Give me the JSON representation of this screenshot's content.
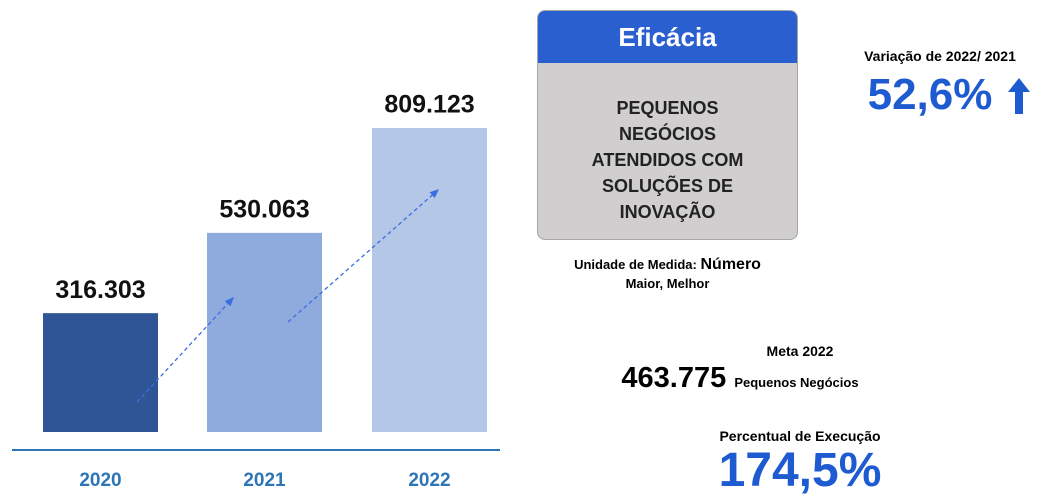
{
  "chart_data": {
    "type": "bar",
    "categories": [
      "2020",
      "2021",
      "2022"
    ],
    "values": [
      316303,
      530063,
      809123
    ],
    "value_labels": [
      "316.303",
      "530.063",
      "809.123"
    ],
    "colors": [
      "#2f5597",
      "#8faadc",
      "#b4c7e7"
    ]
  },
  "indicator": {
    "title": "Eficácia",
    "description": [
      "PEQUENOS",
      "NEGÓCIOS",
      "ATENDIDOS COM",
      "SOLUÇÕES DE",
      "INOVAÇÃO"
    ]
  },
  "unit": {
    "label": "Unidade de Medida:",
    "value": "Número"
  },
  "polarity": "Maior, Melhor",
  "variation": {
    "label": "Variação de 2022/ 2021",
    "value": "52,6%"
  },
  "target": {
    "label": "Meta 2022",
    "value": "463.775",
    "unit": "Pequenos Negócios"
  },
  "execution": {
    "label": "Percentual de Execução",
    "value": "174,5%"
  }
}
